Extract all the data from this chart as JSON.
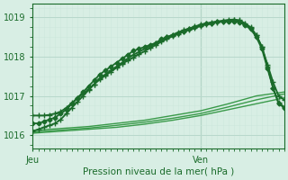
{
  "xlabel": "Pression niveau de la mer( hPa )",
  "bg_color": "#d8eee4",
  "grid_color_major": "#b8d8cc",
  "grid_color_minor": "#cce8dc",
  "line_color_dark": "#1a6b2a",
  "line_color_light": "#3a9a4a",
  "ylim": [
    1015.65,
    1019.35
  ],
  "xlim": [
    0,
    45
  ],
  "xtick_positions": [
    0,
    30
  ],
  "xtick_labels": [
    "Jeu",
    "Ven"
  ],
  "ytick_positions": [
    1016,
    1017,
    1018,
    1019
  ],
  "vline_x": 30,
  "series_dark": [
    {
      "x": [
        0,
        1,
        2,
        3,
        4,
        5,
        6,
        7,
        8,
        9,
        10,
        11,
        12,
        13,
        14,
        15,
        16,
        17,
        18,
        19,
        20,
        21,
        22,
        23,
        24,
        25,
        26,
        27,
        28,
        29,
        30,
        31,
        32,
        33,
        34,
        35,
        36,
        37,
        38,
        39,
        40,
        41,
        42,
        43,
        44,
        45
      ],
      "y": [
        1016.3,
        1016.3,
        1016.35,
        1016.4,
        1016.45,
        1016.55,
        1016.65,
        1016.8,
        1016.95,
        1017.1,
        1017.25,
        1017.4,
        1017.55,
        1017.65,
        1017.75,
        1017.85,
        1017.95,
        1018.05,
        1018.15,
        1018.2,
        1018.25,
        1018.3,
        1018.35,
        1018.45,
        1018.5,
        1018.55,
        1018.6,
        1018.65,
        1018.7,
        1018.75,
        1018.8,
        1018.85,
        1018.85,
        1018.9,
        1018.9,
        1018.9,
        1018.9,
        1018.88,
        1018.8,
        1018.7,
        1018.5,
        1018.2,
        1017.7,
        1017.2,
        1016.8,
        1016.7
      ],
      "marker": "D",
      "lw": 1.3,
      "ms": 2.5,
      "color": "#1a6b2a"
    },
    {
      "x": [
        0,
        1,
        2,
        3,
        4,
        5,
        6,
        7,
        8,
        9,
        10,
        11,
        12,
        13,
        14,
        15,
        16,
        17,
        18,
        19,
        20,
        21,
        22,
        23,
        24,
        25,
        26,
        27,
        28,
        29,
        30,
        31,
        32,
        33,
        34,
        35,
        36,
        37,
        38,
        39,
        40,
        41,
        42,
        43,
        44,
        45
      ],
      "y": [
        1016.1,
        1016.15,
        1016.2,
        1016.25,
        1016.3,
        1016.4,
        1016.55,
        1016.7,
        1016.85,
        1017.0,
        1017.15,
        1017.3,
        1017.45,
        1017.55,
        1017.65,
        1017.75,
        1017.85,
        1017.95,
        1018.05,
        1018.12,
        1018.2,
        1018.27,
        1018.35,
        1018.42,
        1018.5,
        1018.56,
        1018.62,
        1018.68,
        1018.72,
        1018.77,
        1018.82,
        1018.85,
        1018.88,
        1018.9,
        1018.92,
        1018.94,
        1018.95,
        1018.93,
        1018.85,
        1018.75,
        1018.55,
        1018.25,
        1017.8,
        1017.35,
        1017.0,
        1016.9
      ],
      "marker": "+",
      "lw": 1.3,
      "ms": 4,
      "color": "#1a6b2a"
    },
    {
      "x": [
        0,
        1,
        2,
        3,
        4,
        5,
        6,
        7,
        8,
        9,
        10,
        11,
        12,
        13,
        14,
        15,
        16,
        17,
        18,
        19,
        20,
        21,
        22,
        23,
        24,
        25,
        26,
        27,
        28,
        29,
        30,
        31,
        32,
        33,
        34,
        35,
        36,
        37,
        38,
        39,
        40,
        41,
        42,
        43,
        44,
        45
      ],
      "y": [
        1016.5,
        1016.5,
        1016.5,
        1016.52,
        1016.55,
        1016.6,
        1016.7,
        1016.82,
        1016.95,
        1017.05,
        1017.18,
        1017.3,
        1017.42,
        1017.52,
        1017.62,
        1017.72,
        1017.82,
        1017.9,
        1017.98,
        1018.06,
        1018.14,
        1018.22,
        1018.3,
        1018.38,
        1018.45,
        1018.52,
        1018.58,
        1018.64,
        1018.68,
        1018.73,
        1018.78,
        1018.82,
        1018.85,
        1018.88,
        1018.9,
        1018.92,
        1018.93,
        1018.91,
        1018.83,
        1018.73,
        1018.55,
        1018.25,
        1017.75,
        1017.2,
        1016.82,
        1016.72
      ],
      "marker": "+",
      "lw": 1.3,
      "ms": 4,
      "color": "#1a6b2a"
    }
  ],
  "series_light": [
    {
      "x": [
        0,
        5,
        10,
        15,
        20,
        25,
        30,
        35,
        40,
        45
      ],
      "y": [
        1016.05,
        1016.1,
        1016.15,
        1016.2,
        1016.28,
        1016.38,
        1016.5,
        1016.65,
        1016.8,
        1016.95
      ],
      "lw": 1.0,
      "color": "#3a9a4a"
    },
    {
      "x": [
        0,
        5,
        10,
        15,
        20,
        25,
        30,
        35,
        40,
        45
      ],
      "y": [
        1016.08,
        1016.13,
        1016.18,
        1016.25,
        1016.33,
        1016.43,
        1016.55,
        1016.72,
        1016.9,
        1017.05
      ],
      "lw": 1.0,
      "color": "#3a9a4a"
    },
    {
      "x": [
        0,
        5,
        10,
        15,
        20,
        25,
        30,
        35,
        40,
        45
      ],
      "y": [
        1016.12,
        1016.17,
        1016.22,
        1016.3,
        1016.38,
        1016.5,
        1016.62,
        1016.8,
        1017.0,
        1017.1
      ],
      "lw": 1.0,
      "color": "#3a9a4a"
    }
  ]
}
